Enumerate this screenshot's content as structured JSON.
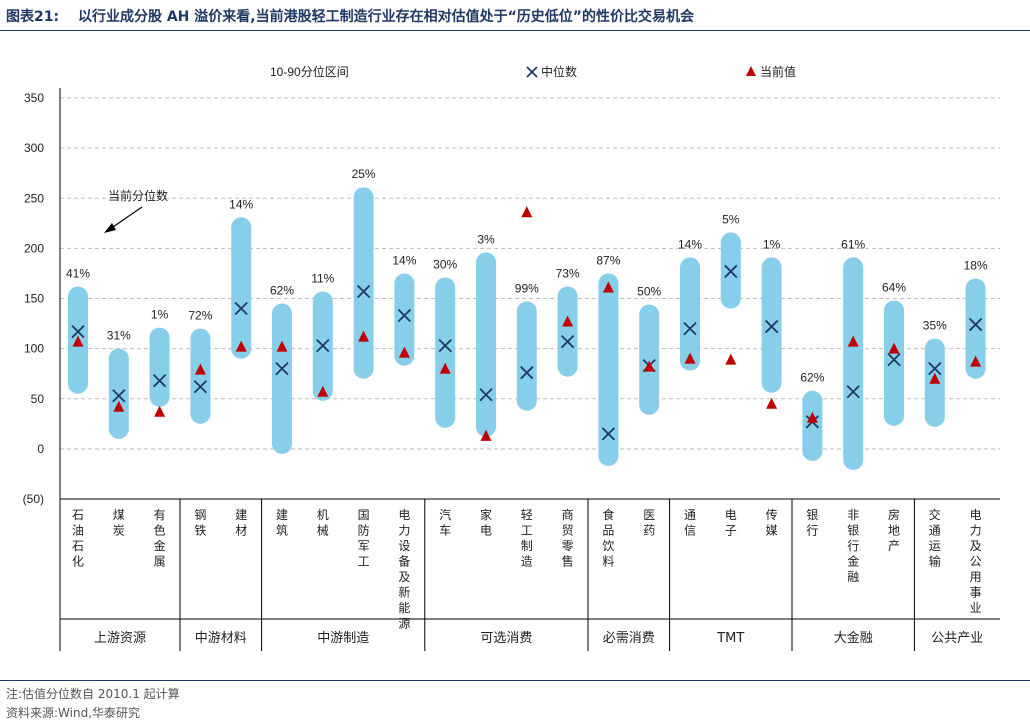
{
  "figure": {
    "number": "图表21:",
    "title": "以行业成分股 AH 溢价来看,当前港股轻工制造行业存在相对估值处于“历史低位”的性价比交易机会"
  },
  "footer": {
    "note": "注:估值分位数自 2010.1 起计算",
    "source": "资料来源:Wind,华泰研究"
  },
  "colors": {
    "range_bar": "#87CEEB",
    "median_marker": "#1F3864",
    "current_marker": "#C00000",
    "grid": "#BFBFBF",
    "title": "#1F3864"
  },
  "chart_data": {
    "type": "range-marker",
    "legend": {
      "range": "10-90分位区间",
      "median": "中位数",
      "current": "当前值"
    },
    "annotation": "当前分位数",
    "y_ticks": [
      "350",
      "300",
      "250",
      "200",
      "150",
      "100",
      "50",
      "0",
      "(50)"
    ],
    "ylim": [
      -50,
      350
    ],
    "grid": true,
    "categories": [
      {
        "name": "石油石化",
        "low": 55,
        "high": 162,
        "median": 117,
        "current": 107,
        "pct": "41%"
      },
      {
        "name": "煤炭",
        "low": 10,
        "high": 100,
        "median": 53,
        "current": 42,
        "pct": "31%"
      },
      {
        "name": "有色金属",
        "low": 42,
        "high": 121,
        "median": 68,
        "current": 37,
        "pct": "1%"
      },
      {
        "name": "钢铁",
        "low": 25,
        "high": 120,
        "median": 62,
        "current": 79,
        "pct": "72%"
      },
      {
        "name": "建材",
        "low": 90,
        "high": 231,
        "median": 140,
        "current": 102,
        "pct": "14%"
      },
      {
        "name": "建筑",
        "low": -5,
        "high": 145,
        "median": 80,
        "current": 102,
        "pct": "62%"
      },
      {
        "name": "机械",
        "low": 48,
        "high": 157,
        "median": 103,
        "current": 57,
        "pct": "11%"
      },
      {
        "name": "国防军工",
        "low": 70,
        "high": 261,
        "median": 157,
        "current": 112,
        "pct": "25%"
      },
      {
        "name": "电力设备及新能源",
        "low": 83,
        "high": 175,
        "median": 133,
        "current": 96,
        "pct": "14%"
      },
      {
        "name": "汽车",
        "low": 21,
        "high": 171,
        "median": 103,
        "current": 80,
        "pct": "30%"
      },
      {
        "name": "家电",
        "low": 12,
        "high": 196,
        "median": 54,
        "current": 13,
        "pct": "3%"
      },
      {
        "name": "轻工制造",
        "low": 38,
        "high": 147,
        "median": 76,
        "current": 236,
        "pct": "99%"
      },
      {
        "name": "商贸零售",
        "low": 72,
        "high": 162,
        "median": 107,
        "current": 127,
        "pct": "73%"
      },
      {
        "name": "食品饮料",
        "low": -17,
        "high": 175,
        "median": 15,
        "current": 161,
        "pct": "87%"
      },
      {
        "name": "医药",
        "low": 34,
        "high": 144,
        "median": 83,
        "current": 82,
        "pct": "50%"
      },
      {
        "name": "通信",
        "low": 78,
        "high": 191,
        "median": 120,
        "current": 90,
        "pct": "14%"
      },
      {
        "name": "电子",
        "low": 140,
        "high": 216,
        "median": 177,
        "current": 89,
        "pct": "5%"
      },
      {
        "name": "传媒",
        "low": 56,
        "high": 191,
        "median": 122,
        "current": 45,
        "pct": "1%"
      },
      {
        "name": "银行",
        "low": -12,
        "high": 58,
        "median": 27,
        "current": 31,
        "pct": "62%"
      },
      {
        "name": "非银行金融",
        "low": -21,
        "high": 191,
        "median": 57,
        "current": 107,
        "pct": "61%"
      },
      {
        "name": "房地产",
        "low": 23,
        "high": 148,
        "median": 89,
        "current": 100,
        "pct": "64%"
      },
      {
        "name": "交通运输",
        "low": 22,
        "high": 110,
        "median": 80,
        "current": 70,
        "pct": "35%"
      },
      {
        "name": "电力及公用事业",
        "low": 70,
        "high": 170,
        "median": 124,
        "current": 87,
        "pct": "18%"
      }
    ],
    "groups": [
      {
        "name": "上游资源",
        "start": 0,
        "end": 2
      },
      {
        "name": "中游材料",
        "start": 3,
        "end": 4
      },
      {
        "name": "中游制造",
        "start": 5,
        "end": 8
      },
      {
        "name": "可选消费",
        "start": 9,
        "end": 12
      },
      {
        "name": "必需消费",
        "start": 13,
        "end": 14
      },
      {
        "name": "TMT",
        "start": 15,
        "end": 17
      },
      {
        "name": "大金融",
        "start": 18,
        "end": 20
      },
      {
        "name": "公共产业",
        "start": 21,
        "end": 22
      }
    ]
  }
}
